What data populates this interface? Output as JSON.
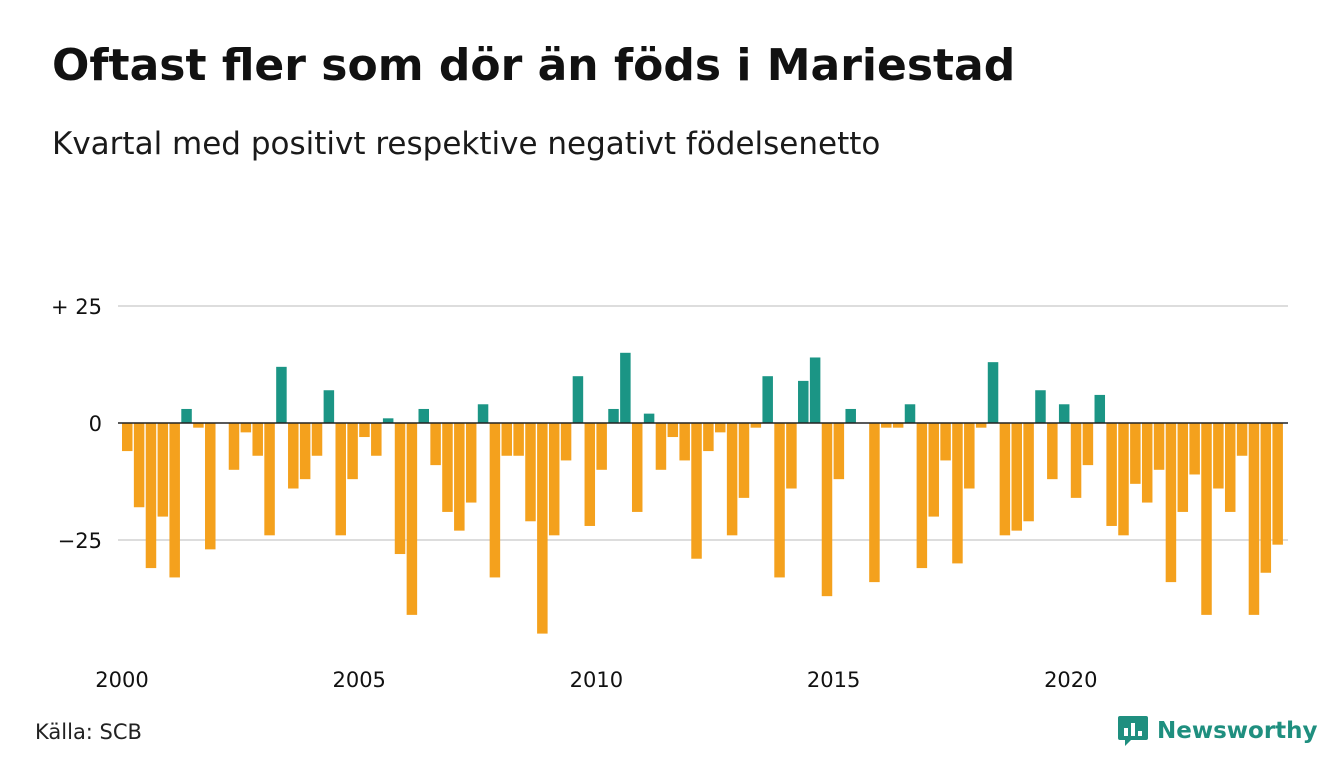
{
  "header": {
    "title": "Oftast fler som dör än föds i Mariestad",
    "subtitle": "Kvartal med positivt respektive negativt födelsenetto"
  },
  "footer": {
    "source": "Källa: SCB",
    "brand": "Newsworthy"
  },
  "colors": {
    "positive": "#1b9585",
    "negative": "#f4a11d",
    "grid": "#dddddd",
    "zero_line": "#222222"
  },
  "icons": {
    "logo": "bar-chart-speech-bubble-icon"
  },
  "chart_data": {
    "type": "bar",
    "title": "Oftast fler som dör än föds i Mariestad",
    "subtitle": "Kvartal med positivt respektive negativt födelsenetto",
    "xlabel": "",
    "ylabel": "",
    "ylim": [
      -45,
      30
    ],
    "x_start": "2000 Q1",
    "x_ticks": [
      {
        "year": 2000,
        "label": "2000"
      },
      {
        "year": 2005,
        "label": "2005"
      },
      {
        "year": 2010,
        "label": "2010"
      },
      {
        "year": 2015,
        "label": "2015"
      },
      {
        "year": 2020,
        "label": "2020"
      }
    ],
    "y_ticks": [
      {
        "value": 25,
        "label": "+ 25"
      },
      {
        "value": 0,
        "label": "0"
      },
      {
        "value": -25,
        "label": "−25"
      }
    ],
    "grid": true,
    "values": [
      -6,
      -18,
      -31,
      -20,
      -33,
      3,
      -1,
      -27,
      0,
      -10,
      -2,
      -7,
      -24,
      12,
      -14,
      -12,
      -7,
      7,
      -24,
      -12,
      -3,
      -7,
      1,
      -28,
      -41,
      3,
      -9,
      -19,
      -23,
      -17,
      4,
      -33,
      -7,
      -7,
      -21,
      -45,
      -24,
      -8,
      10,
      -22,
      -10,
      3,
      15,
      -19,
      2,
      -10,
      -3,
      -8,
      -29,
      -6,
      -2,
      -24,
      -16,
      -1,
      10,
      -33,
      -14,
      9,
      14,
      -37,
      -12,
      3,
      0,
      -34,
      -1,
      -1,
      4,
      -31,
      -20,
      -8,
      -30,
      -14,
      -1,
      13,
      -24,
      -23,
      -21,
      7,
      -12,
      4,
      -16,
      -9,
      6,
      -22,
      -24,
      -13,
      -17,
      -10,
      -34,
      -19,
      -11,
      -41,
      -14,
      -19,
      -7,
      -41,
      -32,
      -26
    ]
  }
}
